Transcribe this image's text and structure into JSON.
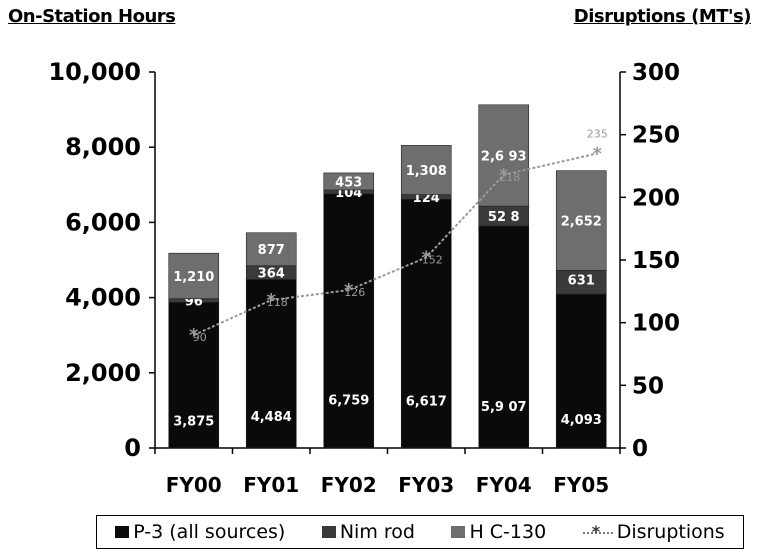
{
  "left_axis_title": "On-Station Hours",
  "right_axis_title_main": "Disruptions",
  "right_axis_title_unit": "(MT's)",
  "colors": {
    "p3": "#0a0a0a",
    "nimrod": "#3a3a3a",
    "hc130": "#6e6e6e",
    "disruptions_line": "#9a9a9a",
    "label_text": "#ffffff"
  },
  "chart_data": {
    "type": "bar",
    "stacked": true,
    "categories": [
      "FY00",
      "FY01",
      "FY02",
      "FY03",
      "FY04",
      "FY05"
    ],
    "series": [
      {
        "name": "P-3 (all sources)",
        "values": [
          3875,
          4484,
          6759,
          6617,
          5907,
          4093
        ],
        "labels": [
          "3,875",
          "4,484",
          "6,759",
          "6,617",
          "5,9 07",
          "4,093"
        ]
      },
      {
        "name": "Nim rod",
        "values": [
          96,
          364,
          104,
          124,
          528,
          631
        ],
        "labels": [
          "96",
          "364",
          "104",
          "124",
          "52 8",
          "631"
        ]
      },
      {
        "name": "H C-130",
        "values": [
          1210,
          877,
          453,
          1308,
          2693,
          2652
        ],
        "labels": [
          "1,210",
          "877",
          "453",
          "1,308",
          "2,6 93",
          "2,652"
        ]
      }
    ],
    "line_series": {
      "name": "Disruptions",
      "axis": "right",
      "values": [
        90,
        118,
        126,
        152,
        218,
        235
      ],
      "labels": [
        "90",
        "118",
        "126",
        "152",
        "218",
        "235"
      ]
    },
    "y_left": {
      "range": [
        0,
        10000
      ],
      "ticks": [
        "0",
        "2,000",
        "4,000",
        "6,000",
        "8,000",
        "10,000"
      ]
    },
    "y_right": {
      "range": [
        0,
        300
      ],
      "ticks": [
        "0",
        "50",
        "100",
        "150",
        "200",
        "250",
        "300"
      ]
    },
    "legend_position": "bottom",
    "grid": false
  }
}
